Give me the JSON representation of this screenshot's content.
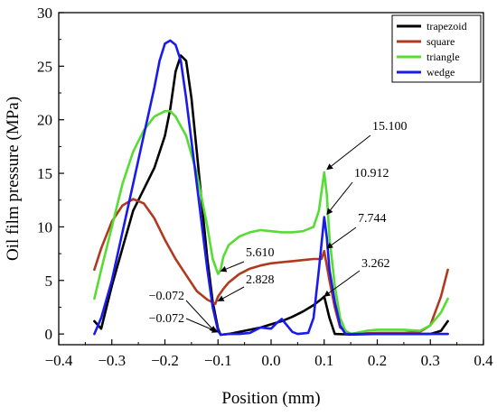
{
  "chart_data": {
    "type": "line",
    "xlabel": "Position (mm)",
    "ylabel": "Oil film pressure (MPa)",
    "xlim": [
      -0.4,
      0.4
    ],
    "ylim": [
      -1,
      30
    ],
    "xticks": [
      -0.4,
      -0.3,
      -0.2,
      -0.1,
      0.0,
      0.1,
      0.2,
      0.3,
      0.4
    ],
    "xtick_labels": [
      "−0.4",
      "−0.3",
      "−0.2",
      "−0.1",
      "0.0",
      "0.1",
      "0.2",
      "0.3",
      "0.4"
    ],
    "yticks": [
      0,
      5,
      10,
      15,
      20,
      25,
      30
    ],
    "ytick_labels": [
      "0",
      "5",
      "10",
      "15",
      "20",
      "25",
      "30"
    ],
    "grid": false,
    "legend_position": "top-right",
    "series": [
      {
        "name": "trapezoid",
        "color": "#000000",
        "points": [
          [
            -0.333,
            1.2
          ],
          [
            -0.32,
            0.5
          ],
          [
            -0.3,
            4.5
          ],
          [
            -0.28,
            8.0
          ],
          [
            -0.26,
            11.5
          ],
          [
            -0.24,
            13.5
          ],
          [
            -0.22,
            15.5
          ],
          [
            -0.2,
            18.5
          ],
          [
            -0.19,
            21.0
          ],
          [
            -0.18,
            24.5
          ],
          [
            -0.17,
            26.0
          ],
          [
            -0.16,
            25.5
          ],
          [
            -0.15,
            22.0
          ],
          [
            -0.14,
            17.0
          ],
          [
            -0.13,
            12.0
          ],
          [
            -0.12,
            7.0
          ],
          [
            -0.11,
            3.0
          ],
          [
            -0.1,
            0.5
          ],
          [
            -0.095,
            -0.072
          ],
          [
            -0.08,
            0.0
          ],
          [
            -0.06,
            0.2
          ],
          [
            -0.04,
            0.4
          ],
          [
            -0.02,
            0.6
          ],
          [
            0.0,
            0.9
          ],
          [
            0.02,
            1.2
          ],
          [
            0.04,
            1.6
          ],
          [
            0.06,
            2.1
          ],
          [
            0.08,
            2.7
          ],
          [
            0.095,
            3.262
          ],
          [
            0.1,
            3.5
          ],
          [
            0.11,
            1.5
          ],
          [
            0.12,
            0.0
          ],
          [
            0.15,
            -0.05
          ],
          [
            0.2,
            0.0
          ],
          [
            0.25,
            0.0
          ],
          [
            0.3,
            0.0
          ],
          [
            0.32,
            0.3
          ],
          [
            0.333,
            1.2
          ]
        ]
      },
      {
        "name": "square",
        "color": "#b03a20",
        "points": [
          [
            -0.333,
            6.0
          ],
          [
            -0.32,
            8.0
          ],
          [
            -0.3,
            10.5
          ],
          [
            -0.28,
            12.0
          ],
          [
            -0.26,
            12.6
          ],
          [
            -0.24,
            12.2
          ],
          [
            -0.22,
            10.8
          ],
          [
            -0.2,
            8.8
          ],
          [
            -0.18,
            7.0
          ],
          [
            -0.16,
            5.5
          ],
          [
            -0.14,
            4.0
          ],
          [
            -0.12,
            3.2
          ],
          [
            -0.105,
            2.828
          ],
          [
            -0.1,
            3.5
          ],
          [
            -0.09,
            4.2
          ],
          [
            -0.08,
            4.8
          ],
          [
            -0.06,
            5.6
          ],
          [
            -0.04,
            6.1
          ],
          [
            -0.02,
            6.4
          ],
          [
            0.0,
            6.6
          ],
          [
            0.02,
            6.7
          ],
          [
            0.04,
            6.8
          ],
          [
            0.06,
            6.9
          ],
          [
            0.08,
            7.0
          ],
          [
            0.095,
            7.0
          ],
          [
            0.1,
            7.744
          ],
          [
            0.11,
            5.0
          ],
          [
            0.12,
            2.5
          ],
          [
            0.13,
            0.6
          ],
          [
            0.15,
            0.0
          ],
          [
            0.2,
            0.1
          ],
          [
            0.25,
            0.1
          ],
          [
            0.28,
            0.2
          ],
          [
            0.3,
            0.8
          ],
          [
            0.32,
            3.5
          ],
          [
            0.333,
            6.0
          ]
        ]
      },
      {
        "name": "triangle",
        "color": "#55dd33",
        "points": [
          [
            -0.333,
            3.3
          ],
          [
            -0.32,
            6.0
          ],
          [
            -0.3,
            10.0
          ],
          [
            -0.28,
            14.0
          ],
          [
            -0.26,
            17.0
          ],
          [
            -0.24,
            19.0
          ],
          [
            -0.22,
            20.3
          ],
          [
            -0.2,
            20.8
          ],
          [
            -0.19,
            20.8
          ],
          [
            -0.18,
            20.3
          ],
          [
            -0.16,
            18.5
          ],
          [
            -0.14,
            15.0
          ],
          [
            -0.12,
            10.0
          ],
          [
            -0.11,
            7.0
          ],
          [
            -0.1,
            5.61
          ],
          [
            -0.095,
            6.0
          ],
          [
            -0.09,
            7.2
          ],
          [
            -0.08,
            8.3
          ],
          [
            -0.06,
            9.1
          ],
          [
            -0.04,
            9.5
          ],
          [
            -0.02,
            9.7
          ],
          [
            0.0,
            9.6
          ],
          [
            0.02,
            9.5
          ],
          [
            0.04,
            9.5
          ],
          [
            0.06,
            9.6
          ],
          [
            0.08,
            10.0
          ],
          [
            0.09,
            11.5
          ],
          [
            0.1,
            15.1
          ],
          [
            0.105,
            13.0
          ],
          [
            0.11,
            9.0
          ],
          [
            0.12,
            4.5
          ],
          [
            0.13,
            1.5
          ],
          [
            0.14,
            0.3
          ],
          [
            0.15,
            0.0
          ],
          [
            0.18,
            0.3
          ],
          [
            0.2,
            0.4
          ],
          [
            0.25,
            0.4
          ],
          [
            0.28,
            0.3
          ],
          [
            0.3,
            0.8
          ],
          [
            0.32,
            2.0
          ],
          [
            0.333,
            3.3
          ]
        ]
      },
      {
        "name": "wedge",
        "color": "#1a1aee",
        "points": [
          [
            -0.333,
            0.0
          ],
          [
            -0.32,
            1.5
          ],
          [
            -0.3,
            5.0
          ],
          [
            -0.28,
            9.5
          ],
          [
            -0.26,
            14.0
          ],
          [
            -0.24,
            18.5
          ],
          [
            -0.22,
            23.0
          ],
          [
            -0.21,
            25.5
          ],
          [
            -0.2,
            27.1
          ],
          [
            -0.19,
            27.4
          ],
          [
            -0.18,
            27.0
          ],
          [
            -0.17,
            25.5
          ],
          [
            -0.16,
            22.0
          ],
          [
            -0.15,
            18.0
          ],
          [
            -0.14,
            14.0
          ],
          [
            -0.13,
            10.0
          ],
          [
            -0.12,
            6.0
          ],
          [
            -0.11,
            2.5
          ],
          [
            -0.1,
            0.3
          ],
          [
            -0.095,
            -0.072
          ],
          [
            -0.08,
            0.0
          ],
          [
            -0.06,
            0.0
          ],
          [
            -0.04,
            0.1
          ],
          [
            -0.02,
            0.6
          ],
          [
            0.0,
            0.5
          ],
          [
            0.01,
            1.0
          ],
          [
            0.02,
            1.4
          ],
          [
            0.03,
            0.8
          ],
          [
            0.04,
            0.2
          ],
          [
            0.05,
            0.0
          ],
          [
            0.07,
            0.1
          ],
          [
            0.08,
            1.5
          ],
          [
            0.09,
            6.0
          ],
          [
            0.1,
            10.912
          ],
          [
            0.105,
            9.0
          ],
          [
            0.11,
            6.0
          ],
          [
            0.12,
            3.0
          ],
          [
            0.13,
            0.8
          ],
          [
            0.14,
            0.0
          ],
          [
            0.2,
            0.0
          ],
          [
            0.25,
            0.0
          ],
          [
            0.3,
            0.0
          ],
          [
            0.333,
            0.0
          ]
        ]
      }
    ],
    "annotations": [
      {
        "text": "15.100",
        "x": 0.1,
        "y": 15.1
      },
      {
        "text": "10.912",
        "x": 0.1,
        "y": 10.912
      },
      {
        "text": "7.744",
        "x": 0.1,
        "y": 7.744
      },
      {
        "text": "3.262",
        "x": 0.095,
        "y": 3.262
      },
      {
        "text": "5.610",
        "x": -0.1,
        "y": 5.61
      },
      {
        "text": "2.828",
        "x": -0.105,
        "y": 2.828
      },
      {
        "text": "−0.072",
        "x": -0.1,
        "y": -0.072
      },
      {
        "text": "−0.072",
        "x": -0.095,
        "y": -0.072
      }
    ]
  }
}
